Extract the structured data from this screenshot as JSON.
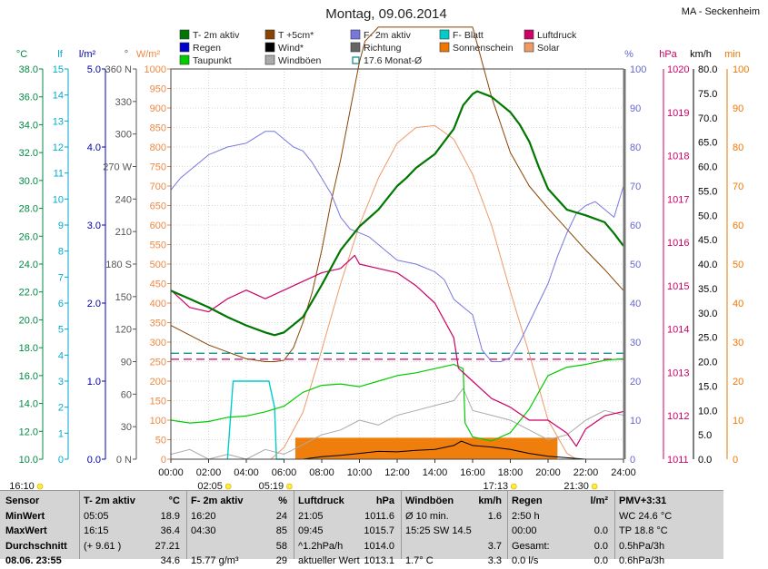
{
  "chart_data": {
    "type": "line",
    "title": "Montag, 09.06.2014",
    "station": "MA - Seckenheim",
    "colors": {
      "temp": "#007700",
      "temp5": "#884400",
      "hum": "#7777dd",
      "leaf": "#00cccc",
      "pressure": "#cc0066",
      "rain": "#0000cc",
      "wind": "#000000",
      "dir": "#666666",
      "sunshine": "#ee7700",
      "solar": "#ee9966",
      "dew": "#00cc00",
      "gust": "#aaaaaa",
      "avg": "#008888"
    },
    "legend": [
      {
        "key": "temp",
        "label": "T- 2m aktiv",
        "style": "box"
      },
      {
        "key": "temp5",
        "label": "T +5cm*",
        "style": "box"
      },
      {
        "key": "hum",
        "label": "F- 2m aktiv",
        "style": "box"
      },
      {
        "key": "leaf",
        "label": "F- Blatt",
        "style": "box"
      },
      {
        "key": "pressure",
        "label": "Luftdruck",
        "style": "box"
      },
      {
        "key": "rain",
        "label": "Regen",
        "style": "box"
      },
      {
        "key": "wind",
        "label": "Wind*",
        "style": "box"
      },
      {
        "key": "dir",
        "label": "Richtung",
        "style": "box"
      },
      {
        "key": "sunshine",
        "label": "Sonnenschein",
        "style": "box",
        "textColor": "#ee7700"
      },
      {
        "key": "solar",
        "label": "Solar",
        "style": "box",
        "textColor": "#ee9966"
      },
      {
        "key": "dew",
        "label": "Taupunkt",
        "style": "box"
      },
      {
        "key": "gust",
        "label": "Windböen",
        "style": "box"
      },
      {
        "key": "avg",
        "label": "17.6 Monat-Ø",
        "style": "outline"
      }
    ],
    "axes": {
      "temp": {
        "unit": "°C",
        "color": "#008844",
        "min": 10,
        "max": 38,
        "ticks": [
          "38.0",
          "36.0",
          "34.0",
          "32.0",
          "30.0",
          "28.0",
          "26.0",
          "24.0",
          "22.0",
          "20.0",
          "18.0",
          "16.0",
          "14.0",
          "12.0",
          "10.0"
        ]
      },
      "leaf": {
        "unit": "lf",
        "color": "#00aacc",
        "min": 0,
        "max": 15,
        "ticks": [
          "15",
          "14",
          "13",
          "12",
          "11",
          "10",
          "9",
          "8",
          "7",
          "6",
          "5",
          "4",
          "3",
          "2",
          "1",
          "0"
        ]
      },
      "rain": {
        "unit": "l/m²",
        "color": "#0000aa",
        "min": 0,
        "max": 5,
        "ticks": [
          "5.0",
          "4.0",
          "3.0",
          "2.0",
          "1.0",
          "0.0"
        ]
      },
      "dir": {
        "unit": "°",
        "color": "#555555",
        "ticks": [
          "360 N",
          "330",
          "300",
          "270 W",
          "240",
          "210",
          "180 S",
          "150",
          "120",
          "90",
          "60",
          "30",
          "0 N"
        ]
      },
      "solar": {
        "unit": "W/m²",
        "color": "#ee8844",
        "min": 0,
        "max": 1000,
        "ticks": [
          "1000",
          "950",
          "900",
          "850",
          "800",
          "750",
          "700",
          "650",
          "600",
          "550",
          "500",
          "450",
          "400",
          "350",
          "300",
          "250",
          "200",
          "150",
          "100",
          "50",
          "0"
        ]
      },
      "hum": {
        "unit": "%",
        "color": "#6666cc",
        "min": 0,
        "max": 100,
        "ticks": [
          "100",
          "90",
          "80",
          "70",
          "60",
          "50",
          "40",
          "30",
          "20",
          "10",
          "0"
        ]
      },
      "pressure": {
        "unit": "hPa",
        "color": "#cc0066",
        "min": 1011,
        "max": 1020,
        "ticks": [
          "1020",
          "1019",
          "1018",
          "1017",
          "1016",
          "1015",
          "1014",
          "1013",
          "1012",
          "1011"
        ]
      },
      "wind": {
        "unit": "km/h",
        "color": "#000000",
        "min": 0,
        "max": 80,
        "ticks": [
          "80.0",
          "75.0",
          "70.0",
          "65.0",
          "60.0",
          "55.0",
          "50.0",
          "45.0",
          "40.0",
          "35.0",
          "30.0",
          "25.0",
          "20.0",
          "15.0",
          "10.0",
          "5.0",
          "0.0"
        ]
      },
      "sunmin": {
        "unit": "min",
        "color": "#ee7700",
        "min": 0,
        "max": 100,
        "ticks": [
          "100",
          "90",
          "80",
          "70",
          "60",
          "50",
          "40",
          "30",
          "20",
          "10",
          "0"
        ]
      }
    },
    "xticks": [
      "00:00",
      "02:00",
      "04:00",
      "06:00",
      "08:00",
      "10:00",
      "12:00",
      "14:00",
      "16:00",
      "18:00",
      "20:00",
      "22:00",
      "24:00"
    ],
    "sun_markers": [
      {
        "label": "16:10",
        "hour": -0.2
      },
      {
        "label": "02:05",
        "hour": 2.08
      },
      {
        "label": "05:19",
        "hour": 5.32
      },
      {
        "label": "17:13",
        "hour": 17.22
      },
      {
        "label": "21:30",
        "hour": 21.5
      }
    ],
    "ref_temp_avg": 17.6,
    "ref_humidity": 27,
    "series": {
      "temp": {
        "hours": [
          0,
          1,
          2,
          3,
          4,
          5,
          5.5,
          6,
          7,
          8,
          9,
          10,
          11,
          12,
          12.5,
          13,
          13.5,
          14,
          15,
          15.5,
          16,
          16.25,
          17,
          18,
          18.5,
          19,
          19.5,
          20,
          21,
          22,
          23,
          23.5,
          24
        ],
        "values": [
          22.1,
          21.5,
          20.9,
          20.2,
          19.6,
          19.1,
          18.9,
          19.1,
          20.2,
          22.5,
          25.0,
          26.7,
          27.9,
          29.6,
          30.2,
          30.9,
          31.4,
          31.9,
          33.7,
          35.4,
          36.2,
          36.4,
          36.0,
          34.9,
          34.0,
          32.8,
          31.0,
          29.4,
          27.9,
          27.5,
          27.0,
          26.2,
          25.3
        ]
      },
      "temp5": {
        "hours": [
          0,
          1,
          2,
          3,
          4,
          5,
          5.5,
          6,
          6.5,
          7,
          7.5,
          8,
          8.5,
          9,
          9.5,
          10,
          10.3,
          11,
          12,
          13,
          14,
          15,
          16,
          17,
          18,
          19,
          20,
          21,
          22,
          23,
          24
        ],
        "values": [
          19.6,
          18.9,
          18.2,
          17.7,
          17.2,
          17.0,
          17.0,
          17.1,
          18.0,
          19.8,
          22.0,
          25.0,
          28.5,
          31.5,
          35.0,
          38.5,
          40,
          41,
          41,
          41,
          41,
          41,
          41,
          36.0,
          32.0,
          29.6,
          28.0,
          26.5,
          25.0,
          23.6,
          22.1
        ]
      },
      "hum": {
        "hours": [
          0,
          0.5,
          1,
          1.5,
          2,
          3,
          4,
          5,
          5.5,
          6,
          6.5,
          7,
          7.5,
          8,
          8.5,
          9,
          9.5,
          10,
          10.5,
          11,
          11.5,
          12,
          13,
          14,
          14.5,
          15,
          15.5,
          16,
          16.5,
          17,
          17.5,
          18,
          18.5,
          19,
          19.5,
          20,
          20.5,
          21,
          21.5,
          22,
          22.5,
          23,
          23.5,
          24
        ],
        "values": [
          69,
          72,
          74,
          76,
          78,
          80,
          81,
          84,
          84,
          82,
          80,
          79,
          76,
          72,
          68,
          62,
          59,
          58,
          57,
          55,
          53,
          51,
          50,
          48,
          46,
          41,
          39,
          37,
          28,
          25,
          25,
          26,
          30,
          35,
          40,
          45,
          52,
          58,
          63,
          65,
          66,
          64,
          62,
          70
        ]
      },
      "dew": {
        "hours": [
          0,
          1,
          2,
          3,
          4,
          5,
          6,
          6.5,
          7,
          8,
          9,
          10,
          11,
          12,
          13,
          14,
          15,
          15.5,
          15.6,
          16,
          17,
          18,
          19,
          20,
          21,
          22,
          23,
          24
        ],
        "values": [
          12.8,
          12.6,
          12.7,
          13.0,
          13.1,
          13.4,
          13.8,
          14.3,
          14.8,
          15.3,
          15.4,
          15.2,
          15.6,
          16.0,
          16.2,
          16.5,
          16.8,
          16.5,
          12.6,
          11.6,
          11.3,
          11.9,
          13.6,
          16.0,
          16.6,
          16.8,
          17.1,
          17.2
        ]
      },
      "pressure": {
        "hours": [
          0,
          1,
          2,
          3,
          4,
          5,
          6,
          7,
          8,
          9,
          9.75,
          10,
          11,
          12,
          13,
          14,
          15,
          15.25,
          16,
          17,
          18,
          19,
          20,
          21,
          21.5,
          22,
          23,
          24
        ],
        "values": [
          1014.9,
          1014.5,
          1014.4,
          1014.7,
          1014.9,
          1014.7,
          1014.9,
          1015.1,
          1015.3,
          1015.4,
          1015.7,
          1015.5,
          1015.4,
          1015.3,
          1015.0,
          1014.6,
          1013.8,
          1013.1,
          1012.8,
          1012.4,
          1012.2,
          1011.9,
          1011.9,
          1011.6,
          1011.3,
          1011.7,
          1012.0,
          1012.1
        ]
      },
      "solar": {
        "hours": [
          5.3,
          6,
          7,
          8,
          9,
          10,
          11,
          12,
          13,
          14,
          15,
          16,
          17,
          18,
          19,
          20,
          21,
          21.5
        ],
        "values": [
          0,
          30,
          120,
          280,
          450,
          600,
          720,
          810,
          850,
          855,
          820,
          730,
          600,
          430,
          270,
          100,
          15,
          0
        ]
      },
      "wind": {
        "hours": [
          0,
          2,
          4,
          6,
          7,
          8,
          9,
          10,
          11,
          12,
          13,
          14,
          15,
          15.4,
          16,
          17,
          18,
          19,
          20,
          21,
          22,
          24
        ],
        "values": [
          0,
          0,
          0,
          0,
          0,
          0.5,
          0.8,
          1.2,
          1.6,
          1.5,
          1.8,
          2.0,
          2.8,
          3.7,
          2.8,
          2.5,
          2.0,
          1.2,
          0.6,
          0.3,
          0,
          0
        ]
      },
      "gust": {
        "hours": [
          0,
          1,
          2,
          3,
          4,
          5,
          6,
          7,
          8,
          9,
          10,
          11,
          12,
          13,
          14,
          15,
          15.5,
          16,
          17,
          18,
          19,
          20,
          21,
          22,
          23,
          24
        ],
        "values": [
          1,
          2,
          0,
          1,
          0,
          2,
          1,
          3,
          5,
          6,
          8,
          7,
          9,
          10,
          11,
          12,
          14.5,
          10,
          9,
          8,
          6,
          4,
          5,
          8,
          10,
          9
        ]
      },
      "leaf": {
        "hours": [
          3.0,
          3.2,
          3.3,
          3.5,
          4.0,
          4.5,
          5.0,
          5.2,
          5.5,
          5.6,
          6.0
        ],
        "values": [
          0,
          2,
          3,
          3,
          3,
          3,
          3,
          3,
          2,
          0,
          0
        ]
      },
      "sunshine": {
        "start": 6.6,
        "end": 20.5,
        "level": 55
      }
    }
  },
  "stats": {
    "columns": [
      {
        "rows": [
          [
            "Sensor",
            ""
          ],
          [
            "MinWert",
            ""
          ],
          [
            "MaxWert",
            ""
          ],
          [
            "Durchschnitt",
            ""
          ],
          [
            "08.06. 23:55",
            ""
          ]
        ]
      },
      {
        "rows": [
          [
            "T- 2m aktiv",
            "°C"
          ],
          [
            "05:05",
            "18.9"
          ],
          [
            "16:15",
            "36.4"
          ],
          [
            "(+ 9.61 )",
            "27.21"
          ],
          [
            "",
            "34.6"
          ]
        ]
      },
      {
        "rows": [
          [
            "F- 2m aktiv",
            "%"
          ],
          [
            "16:20",
            "24"
          ],
          [
            "04:30",
            "85"
          ],
          [
            "",
            "58"
          ],
          [
            "15.77 g/m³",
            "29"
          ]
        ]
      },
      {
        "rows": [
          [
            "Luftdruck",
            "hPa"
          ],
          [
            "21:05",
            "1011.6"
          ],
          [
            "09:45",
            "1015.7"
          ],
          [
            "^1.2hPa/h",
            "1014.0"
          ],
          [
            "aktueller Wert",
            "1013.1"
          ]
        ]
      },
      {
        "rows": [
          [
            "Windböen",
            "km/h"
          ],
          [
            "Ø 10 min.",
            "1.6"
          ],
          [
            "15:25   SW 14.5",
            ""
          ],
          [
            "",
            "3.7"
          ],
          [
            "1.7° C",
            "3.3"
          ]
        ]
      },
      {
        "rows": [
          [
            "Regen",
            "l/m²"
          ],
          [
            "2:50 h",
            ""
          ],
          [
            "00:00",
            "0.0"
          ],
          [
            "Gesamt:",
            "0.0"
          ],
          [
            "0.0 l/s",
            "0.0"
          ]
        ]
      },
      {
        "rows": [
          [
            "PMV+3:31",
            ""
          ],
          [
            "WC 24.6 °C",
            ""
          ],
          [
            "TP 18.8 °C",
            ""
          ],
          [
            "0.5hPa/3h",
            ""
          ],
          [
            "0.6hPa/3h",
            ""
          ]
        ]
      }
    ]
  }
}
